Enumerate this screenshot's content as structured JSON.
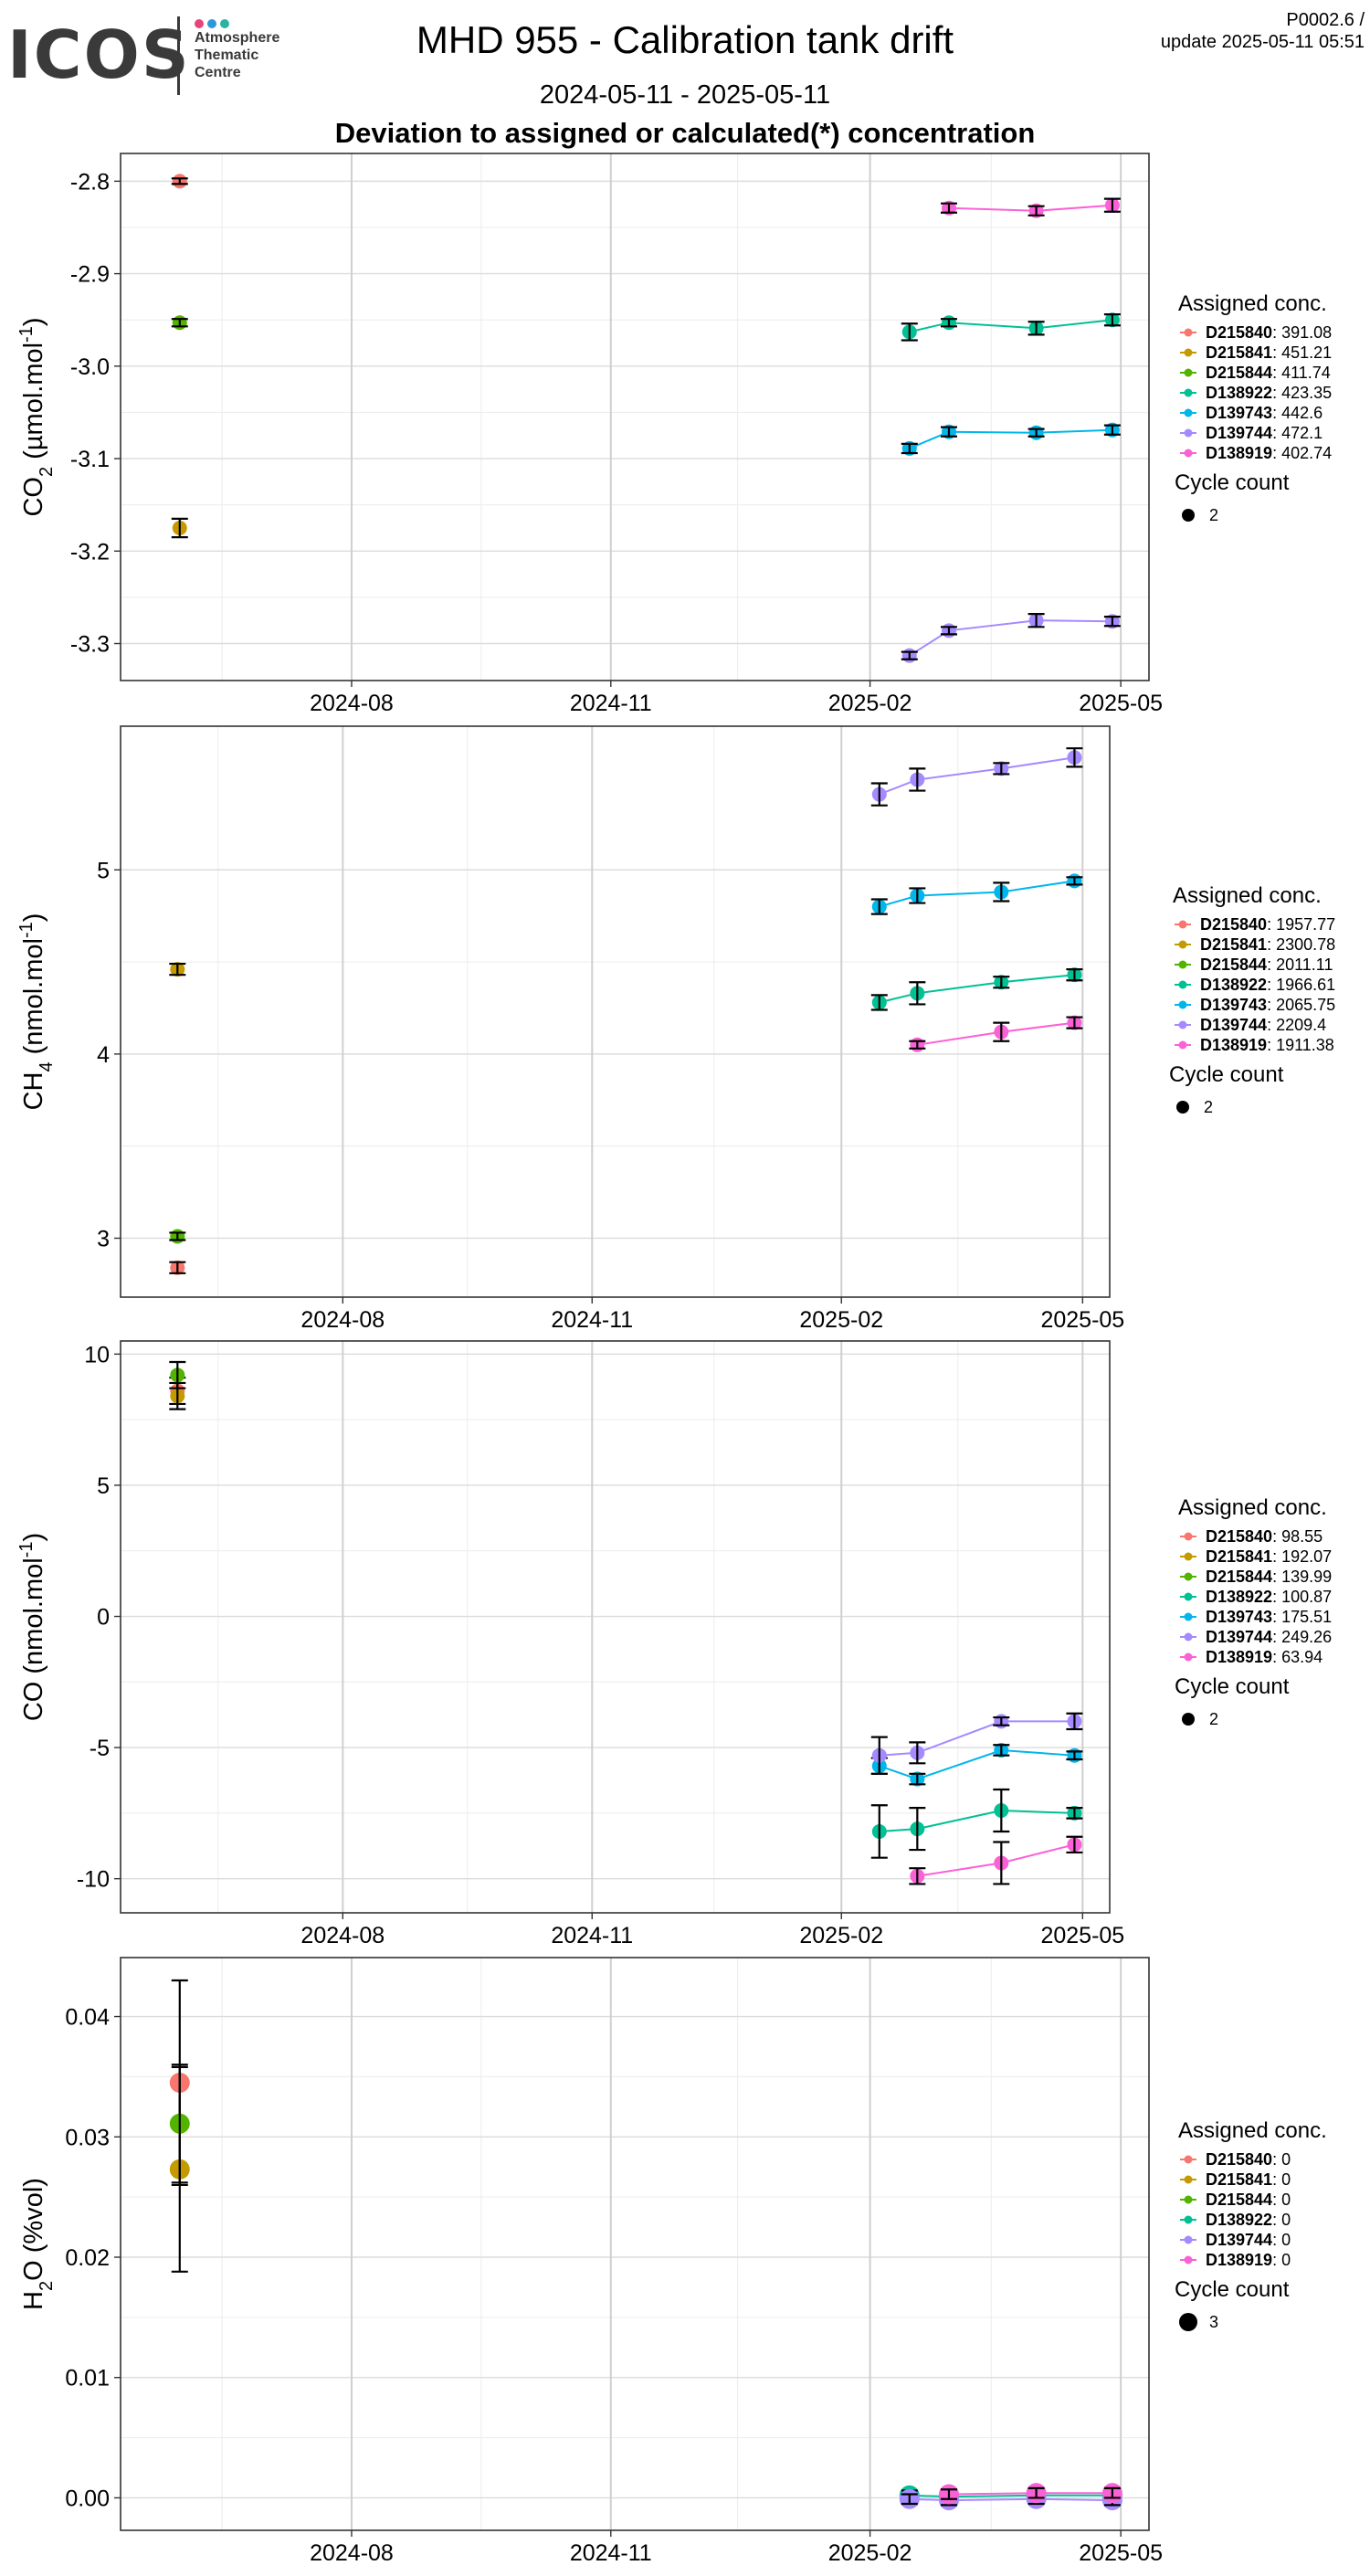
{
  "header": {
    "logo_word": "ICOS",
    "logo_lines": [
      "Atmosphere",
      "Thematic",
      "Centre"
    ],
    "logo_colors": [
      "#e8447c",
      "#2c9ad8",
      "#2cb3a3"
    ],
    "title": "MHD 955 - Calibration tank drift",
    "date_range": "2024-05-11 - 2025-05-11",
    "subtitle": "Deviation to assigned or calculated(*) concentration",
    "version": "P0002.6 /",
    "update": "update  2025-05-11 05:51"
  },
  "tank_colors": {
    "D215840": "#F8766D",
    "D215841": "#C49A00",
    "D215844": "#53B400",
    "D138922": "#00C094",
    "D139743": "#00B6EB",
    "D139744": "#A58AFF",
    "D138919": "#FB61D7"
  },
  "chart_data": [
    {
      "type": "line",
      "species": "CO2",
      "ylabel_base": "CO",
      "ylabel_sub": "2",
      "ylabel_unit": " (µmol.mol",
      "ylabel_sup": "-1",
      "ylabel_close": ")",
      "x_ticks": [
        "2024-08",
        "2024-11",
        "2025-02",
        "2025-05"
      ],
      "x_tick_dates": [
        "2024-08-01",
        "2024-11-01",
        "2025-02-01",
        "2025-05-01"
      ],
      "xlim": [
        "2024-05-11",
        "2025-05-11"
      ],
      "ylim": [
        -3.34,
        -2.77
      ],
      "y_ticks": [
        "-2.8",
        "-2.9",
        "-3.0",
        "-3.1",
        "-3.2",
        "-3.3"
      ],
      "y_tick_values": [
        -2.8,
        -2.9,
        -3.0,
        -3.1,
        -3.2,
        -3.3
      ],
      "legend_title": "Assigned conc.",
      "legend": [
        {
          "tank": "D215840",
          "value": "391.08"
        },
        {
          "tank": "D215841",
          "value": "451.21"
        },
        {
          "tank": "D215844",
          "value": "411.74"
        },
        {
          "tank": "D138922",
          "value": "423.35"
        },
        {
          "tank": "D139743",
          "value": "442.6"
        },
        {
          "tank": "D139744",
          "value": "472.1"
        },
        {
          "tank": "D138919",
          "value": "402.74"
        }
      ],
      "size_title": "Cycle count",
      "size_value": "2",
      "series": [
        {
          "tank": "D215840",
          "points": [
            {
              "x": "2024-06-01",
              "y": -2.8,
              "err": 0.003
            }
          ]
        },
        {
          "tank": "D215841",
          "points": [
            {
              "x": "2024-06-01",
              "y": -3.175,
              "err": 0.01
            }
          ]
        },
        {
          "tank": "D215844",
          "points": [
            {
              "x": "2024-06-01",
              "y": -2.953,
              "err": 0.004
            }
          ]
        },
        {
          "tank": "D138922",
          "points": [
            {
              "x": "2025-02-15",
              "y": -2.963,
              "err": 0.009
            },
            {
              "x": "2025-03-01",
              "y": -2.953,
              "err": 0.004
            },
            {
              "x": "2025-04-01",
              "y": -2.959,
              "err": 0.007
            },
            {
              "x": "2025-04-28",
              "y": -2.95,
              "err": 0.006
            }
          ]
        },
        {
          "tank": "D139743",
          "points": [
            {
              "x": "2025-02-15",
              "y": -3.089,
              "err": 0.005
            },
            {
              "x": "2025-03-01",
              "y": -3.071,
              "err": 0.005
            },
            {
              "x": "2025-04-01",
              "y": -3.072,
              "err": 0.004
            },
            {
              "x": "2025-04-28",
              "y": -3.069,
              "err": 0.005
            }
          ]
        },
        {
          "tank": "D139744",
          "points": [
            {
              "x": "2025-02-15",
              "y": -3.313,
              "err": 0.004
            },
            {
              "x": "2025-03-01",
              "y": -3.286,
              "err": 0.004
            },
            {
              "x": "2025-04-01",
              "y": -3.275,
              "err": 0.007
            },
            {
              "x": "2025-04-28",
              "y": -3.276,
              "err": 0.005
            }
          ]
        },
        {
          "tank": "D138919",
          "points": [
            {
              "x": "2025-03-01",
              "y": -2.829,
              "err": 0.005
            },
            {
              "x": "2025-04-01",
              "y": -2.832,
              "err": 0.005
            },
            {
              "x": "2025-04-28",
              "y": -2.826,
              "err": 0.007
            }
          ]
        }
      ]
    },
    {
      "type": "line",
      "species": "CH4",
      "ylabel_base": "CH",
      "ylabel_sub": "4",
      "ylabel_unit": " (nmol.mol",
      "ylabel_sup": "-1",
      "ylabel_close": ")",
      "x_ticks": [
        "2024-08",
        "2024-11",
        "2025-02",
        "2025-05"
      ],
      "x_tick_dates": [
        "2024-08-01",
        "2024-11-01",
        "2025-02-01",
        "2025-05-01"
      ],
      "xlim": [
        "2024-05-11",
        "2025-05-11"
      ],
      "ylim": [
        2.68,
        5.78
      ],
      "y_ticks": [
        "5",
        "4",
        "3"
      ],
      "y_tick_values": [
        5,
        4,
        3
      ],
      "legend_title": "Assigned conc.",
      "legend": [
        {
          "tank": "D215840",
          "value": "1957.77"
        },
        {
          "tank": "D215841",
          "value": "2300.78"
        },
        {
          "tank": "D215844",
          "value": "2011.11"
        },
        {
          "tank": "D138922",
          "value": "1966.61"
        },
        {
          "tank": "D139743",
          "value": "2065.75"
        },
        {
          "tank": "D139744",
          "value": "2209.4"
        },
        {
          "tank": "D138919",
          "value": "1911.38"
        }
      ],
      "size_title": "Cycle count",
      "size_value": "2",
      "series": [
        {
          "tank": "D215840",
          "points": [
            {
              "x": "2024-06-01",
              "y": 2.84,
              "err": 0.03
            }
          ]
        },
        {
          "tank": "D215841",
          "points": [
            {
              "x": "2024-06-01",
              "y": 4.46,
              "err": 0.03
            }
          ]
        },
        {
          "tank": "D215844",
          "points": [
            {
              "x": "2024-06-01",
              "y": 3.01,
              "err": 0.02
            }
          ]
        },
        {
          "tank": "D138922",
          "points": [
            {
              "x": "2025-02-15",
              "y": 4.28,
              "err": 0.04
            },
            {
              "x": "2025-03-01",
              "y": 4.33,
              "err": 0.06
            },
            {
              "x": "2025-04-01",
              "y": 4.39,
              "err": 0.03
            },
            {
              "x": "2025-04-28",
              "y": 4.43,
              "err": 0.03
            }
          ]
        },
        {
          "tank": "D139743",
          "points": [
            {
              "x": "2025-02-15",
              "y": 4.8,
              "err": 0.04
            },
            {
              "x": "2025-03-01",
              "y": 4.86,
              "err": 0.04
            },
            {
              "x": "2025-04-01",
              "y": 4.88,
              "err": 0.05
            },
            {
              "x": "2025-04-28",
              "y": 4.94,
              "err": 0.02
            }
          ]
        },
        {
          "tank": "D139744",
          "points": [
            {
              "x": "2025-02-15",
              "y": 5.41,
              "err": 0.06
            },
            {
              "x": "2025-03-01",
              "y": 5.49,
              "err": 0.06
            },
            {
              "x": "2025-04-01",
              "y": 5.55,
              "err": 0.03
            },
            {
              "x": "2025-04-28",
              "y": 5.61,
              "err": 0.05
            }
          ]
        },
        {
          "tank": "D138919",
          "points": [
            {
              "x": "2025-03-01",
              "y": 4.05,
              "err": 0.02
            },
            {
              "x": "2025-04-01",
              "y": 4.12,
              "err": 0.05
            },
            {
              "x": "2025-04-28",
              "y": 4.17,
              "err": 0.03
            }
          ]
        }
      ]
    },
    {
      "type": "line",
      "species": "CO",
      "ylabel_base": "CO",
      "ylabel_sub": "",
      "ylabel_unit": " (nmol.mol",
      "ylabel_sup": "-1",
      "ylabel_close": ")",
      "x_ticks": [
        "2024-08",
        "2024-11",
        "2025-02",
        "2025-05"
      ],
      "x_tick_dates": [
        "2024-08-01",
        "2024-11-01",
        "2025-02-01",
        "2025-05-01"
      ],
      "xlim": [
        "2024-05-11",
        "2025-05-11"
      ],
      "ylim": [
        -11.3,
        10.5
      ],
      "y_ticks": [
        "10",
        "5",
        "0",
        "-5",
        "-10"
      ],
      "y_tick_values": [
        10,
        5,
        0,
        -5,
        -10
      ],
      "legend_title": "Assigned conc.",
      "legend": [
        {
          "tank": "D215840",
          "value": "98.55"
        },
        {
          "tank": "D215841",
          "value": "192.07"
        },
        {
          "tank": "D215844",
          "value": "139.99"
        },
        {
          "tank": "D138922",
          "value": "100.87"
        },
        {
          "tank": "D139743",
          "value": "175.51"
        },
        {
          "tank": "D139744",
          "value": "249.26"
        },
        {
          "tank": "D138919",
          "value": "63.94"
        }
      ],
      "size_title": "Cycle count",
      "size_value": "2",
      "series": [
        {
          "tank": "D215840",
          "points": [
            {
              "x": "2024-06-01",
              "y": 8.6,
              "err": 0.5
            }
          ]
        },
        {
          "tank": "D215841",
          "points": [
            {
              "x": "2024-06-01",
              "y": 8.4,
              "err": 0.5
            }
          ]
        },
        {
          "tank": "D215844",
          "points": [
            {
              "x": "2024-06-01",
              "y": 9.2,
              "err": 0.5
            }
          ]
        },
        {
          "tank": "D138922",
          "points": [
            {
              "x": "2025-02-15",
              "y": -8.2,
              "err": 1.0
            },
            {
              "x": "2025-03-01",
              "y": -8.1,
              "err": 0.8
            },
            {
              "x": "2025-04-01",
              "y": -7.4,
              "err": 0.8
            },
            {
              "x": "2025-04-28",
              "y": -7.5,
              "err": 0.2
            }
          ]
        },
        {
          "tank": "D139743",
          "points": [
            {
              "x": "2025-02-15",
              "y": -5.7,
              "err": 0.3
            },
            {
              "x": "2025-03-01",
              "y": -6.2,
              "err": 0.2
            },
            {
              "x": "2025-04-01",
              "y": -5.1,
              "err": 0.2
            },
            {
              "x": "2025-04-28",
              "y": -5.3,
              "err": 0.15
            }
          ]
        },
        {
          "tank": "D139744",
          "points": [
            {
              "x": "2025-02-15",
              "y": -5.3,
              "err": 0.7
            },
            {
              "x": "2025-03-01",
              "y": -5.2,
              "err": 0.4
            },
            {
              "x": "2025-04-01",
              "y": -4.0,
              "err": 0.15
            },
            {
              "x": "2025-04-28",
              "y": -4.0,
              "err": 0.3
            }
          ]
        },
        {
          "tank": "D138919",
          "points": [
            {
              "x": "2025-03-01",
              "y": -9.9,
              "err": 0.3
            },
            {
              "x": "2025-04-01",
              "y": -9.4,
              "err": 0.8
            },
            {
              "x": "2025-04-28",
              "y": -8.7,
              "err": 0.3
            }
          ]
        }
      ]
    },
    {
      "type": "line",
      "species": "H2O",
      "ylabel_base": "H",
      "ylabel_sub": "2",
      "ylabel_unit": "O (%vol)",
      "ylabel_sup": "",
      "ylabel_close": "",
      "x_ticks": [
        "2024-08",
        "2024-11",
        "2025-02",
        "2025-05"
      ],
      "x_tick_dates": [
        "2024-08-01",
        "2024-11-01",
        "2025-02-01",
        "2025-05-01"
      ],
      "xlim": [
        "2024-05-11",
        "2025-05-11"
      ],
      "ylim": [
        -0.0027,
        0.0449
      ],
      "y_ticks": [
        "0.04",
        "0.03",
        "0.02",
        "0.01",
        "0.00"
      ],
      "y_tick_values": [
        0.04,
        0.03,
        0.02,
        0.01,
        0.0
      ],
      "legend_title": "Assigned conc.",
      "legend": [
        {
          "tank": "D215840",
          "value": "0"
        },
        {
          "tank": "D215841",
          "value": "0"
        },
        {
          "tank": "D215844",
          "value": "0"
        },
        {
          "tank": "D138922",
          "value": "0"
        },
        {
          "tank": "D139744",
          "value": "0"
        },
        {
          "tank": "D138919",
          "value": "0"
        }
      ],
      "size_title": "Cycle count",
      "size_value": "3",
      "series": [
        {
          "tank": "D215840",
          "points": [
            {
              "x": "2024-06-01",
              "y": 0.0345,
              "err": 0.0085
            }
          ]
        },
        {
          "tank": "D215841",
          "points": [
            {
              "x": "2024-06-01",
              "y": 0.0273,
              "err": 0.0085
            }
          ]
        },
        {
          "tank": "D215844",
          "points": [
            {
              "x": "2024-06-01",
              "y": 0.0311,
              "err": 0.0049
            }
          ]
        },
        {
          "tank": "D138922",
          "points": [
            {
              "x": "2025-02-15",
              "y": 0.0002,
              "err": 0.0004
            },
            {
              "x": "2025-03-01",
              "y": 0.0001,
              "err": 0.0004
            },
            {
              "x": "2025-04-01",
              "y": 0.0002,
              "err": 0.0004
            },
            {
              "x": "2025-04-28",
              "y": 0.0002,
              "err": 0.0004
            }
          ]
        },
        {
          "tank": "D139744",
          "points": [
            {
              "x": "2025-02-15",
              "y": -0.0001,
              "err": 0.0004
            },
            {
              "x": "2025-03-01",
              "y": -0.0002,
              "err": 0.0004
            },
            {
              "x": "2025-04-01",
              "y": -0.0001,
              "err": 0.0004
            },
            {
              "x": "2025-04-28",
              "y": -0.0002,
              "err": 0.0004
            }
          ]
        },
        {
          "tank": "D138919",
          "points": [
            {
              "x": "2025-03-01",
              "y": 0.0003,
              "err": 0.0004
            },
            {
              "x": "2025-04-01",
              "y": 0.0004,
              "err": 0.0004
            },
            {
              "x": "2025-04-28",
              "y": 0.0004,
              "err": 0.0004
            }
          ]
        }
      ]
    }
  ]
}
